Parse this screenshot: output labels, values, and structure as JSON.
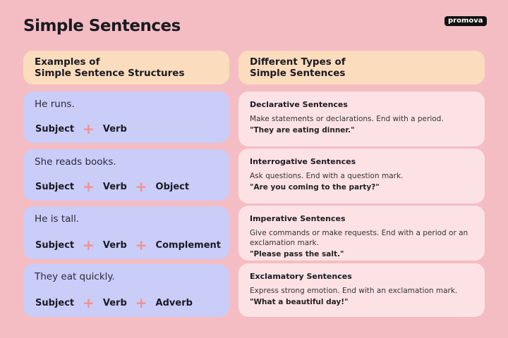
{
  "title": "Simple Sentences",
  "logo": "promova",
  "left_header": [
    "Examples of",
    "Simple Sentence Structures"
  ],
  "right_header": [
    "Different Types of",
    "Simple Sentences"
  ],
  "examples": [
    {
      "sentence": "He runs.",
      "parts": [
        "Subject",
        "Verb"
      ]
    },
    {
      "sentence": "She reads books.",
      "parts": [
        "Subject",
        "Verb",
        "Object"
      ]
    },
    {
      "sentence": "He is tall.",
      "parts": [
        "Subject",
        "Verb",
        "Complement"
      ]
    },
    {
      "sentence": "They eat quickly.",
      "parts": [
        "Subject",
        "Verb",
        "Adverb"
      ]
    }
  ],
  "types": [
    {
      "name": "Declarative Sentences",
      "description": "Make statements or declarations. End with a period.",
      "example": "\"They are eating dinner.\""
    },
    {
      "name": "Interrogative Sentences",
      "description": "Ask questions. End with a question mark.",
      "example": "\"Are you coming to the party?\""
    },
    {
      "name": "Imperative Sentences",
      "description": "Give commands or make requests. End with a period or an exclamation mark.",
      "example": "\"Please pass the salt.\""
    },
    {
      "name": "Exclamatory Sentences",
      "description": "Express strong emotion. End with an exclamation mark.",
      "example": "\"What a beautiful day!\""
    }
  ],
  "colors": {
    "background": "#f4bdc3",
    "header": "#fbdcbd",
    "example_card": "#c9cdf8",
    "type_card": "#fde2e5",
    "plus": "#f2918f"
  }
}
